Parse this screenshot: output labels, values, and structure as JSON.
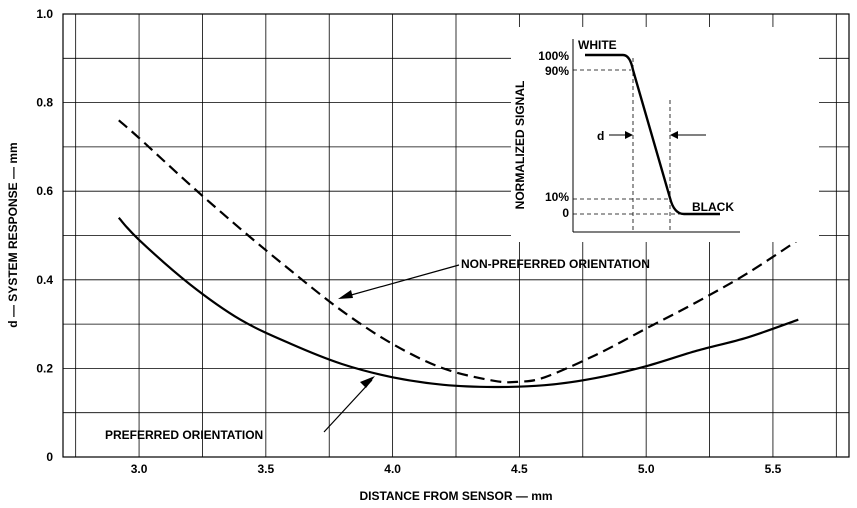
{
  "chart_data": {
    "type": "line",
    "xlabel": "DISTANCE FROM SENSOR — mm",
    "ylabel": "d — SYSTEM RESPONSE — mm",
    "xlim": [
      2.7,
      5.8
    ],
    "ylim": [
      0,
      1.0
    ],
    "x_ticks": [
      3.0,
      3.5,
      4.0,
      4.5,
      5.0,
      5.5
    ],
    "x_tick_labels": [
      "3.0",
      "3.5",
      "4.0",
      "4.5",
      "5.0",
      "5.5"
    ],
    "y_ticks": [
      0,
      0.2,
      0.4,
      0.6,
      0.8,
      1.0
    ],
    "y_tick_labels": [
      "0",
      "0.2",
      "0.4",
      "0.6",
      "0.8",
      "1.0"
    ],
    "grid": true,
    "series": [
      {
        "name": "PREFERRED ORIENTATION",
        "style": "solid",
        "x": [
          2.92,
          3.0,
          3.2,
          3.4,
          3.6,
          3.8,
          4.0,
          4.2,
          4.4,
          4.6,
          4.8,
          5.0,
          5.2,
          5.4,
          5.6
        ],
        "y": [
          0.54,
          0.49,
          0.39,
          0.31,
          0.255,
          0.21,
          0.18,
          0.163,
          0.158,
          0.162,
          0.178,
          0.205,
          0.24,
          0.27,
          0.31
        ]
      },
      {
        "name": "NON-PREFERRED ORIENTATION",
        "style": "dashed",
        "x": [
          2.92,
          3.0,
          3.2,
          3.4,
          3.6,
          3.8,
          4.0,
          4.2,
          4.4,
          4.5,
          4.6,
          4.8,
          5.0,
          5.2,
          5.4,
          5.6
        ],
        "y": [
          0.76,
          0.72,
          0.615,
          0.515,
          0.42,
          0.33,
          0.255,
          0.2,
          0.172,
          0.17,
          0.18,
          0.23,
          0.29,
          0.35,
          0.415,
          0.49
        ]
      }
    ],
    "annotations": [
      {
        "text": "NON-PREFERRED ORIENTATION",
        "points_to": {
          "x": 3.78,
          "y": 0.35
        }
      },
      {
        "text": "PREFERRED ORIENTATION",
        "points_to": {
          "x": 3.89,
          "y": 0.19
        }
      }
    ],
    "inset": {
      "ylabel": "NORMALIZED SIGNAL",
      "y_tick_labels": [
        "100%",
        "90%",
        "10%",
        "0"
      ],
      "top_label": "WHITE",
      "bottom_label": "BLACK",
      "width_label": "d"
    }
  }
}
